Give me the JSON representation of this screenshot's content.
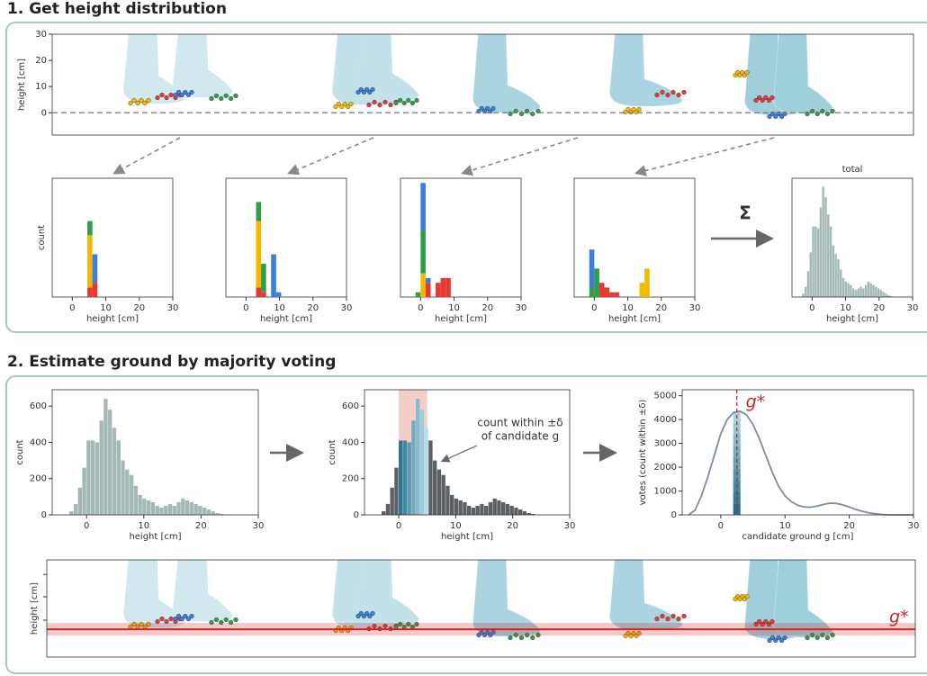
{
  "section1": {
    "title": "1. Get height distribution",
    "strip": {
      "ylabel": "height [cm]",
      "ylim": [
        -8.5,
        30
      ],
      "yticks": [
        0,
        10,
        20,
        30
      ],
      "ground_line": 0
    },
    "histograms": {
      "xlabel": "height [cm]",
      "ylabel": "count",
      "xlim": [
        -6,
        30
      ],
      "xticks": [
        0,
        10,
        20,
        30
      ],
      "ylim": [
        0,
        25
      ],
      "colors": [
        "#e53935",
        "#f5b800",
        "#2e9e48",
        "#3b7de0"
      ],
      "items": [
        {
          "bins": [
            4.5,
            6,
            7.5
          ],
          "series": [
            [
              2,
              3
            ],
            [
              11,
              0
            ],
            [
              3,
              0
            ],
            [
              0,
              6
            ]
          ]
        },
        {
          "bins": [
            3,
            4.5,
            6,
            7.5,
            9,
            10.5
          ],
          "series": [
            [
              2,
              1,
              0,
              0,
              0
            ],
            [
              14,
              0,
              0,
              0,
              0
            ],
            [
              4,
              6,
              0,
              0,
              0
            ],
            [
              0,
              0,
              0,
              9,
              1
            ]
          ]
        },
        {
          "bins": [
            -1.5,
            0,
            1.5,
            3,
            4.5,
            6,
            7.5,
            9
          ],
          "series": [
            [
              0,
              0,
              3,
              0,
              3,
              4,
              4
            ],
            [
              0,
              5,
              0,
              0,
              0,
              0,
              0
            ],
            [
              1,
              9,
              0,
              0,
              0,
              0,
              0
            ],
            [
              0,
              10,
              1,
              0,
              0,
              0,
              0
            ]
          ]
        },
        {
          "bins": [
            -1.5,
            0,
            1.5,
            3,
            4.5,
            6,
            7.5,
            9,
            10.5,
            12,
            13.5,
            15,
            16.5
          ],
          "series": [
            [
              0,
              0,
              3,
              2,
              1,
              1,
              0,
              0,
              0,
              0,
              0,
              0
            ],
            [
              0,
              0,
              0,
              0,
              0,
              0,
              0,
              0,
              0,
              0,
              3,
              6
            ],
            [
              2,
              6,
              0,
              0,
              0,
              0,
              0,
              0,
              0,
              0,
              0,
              0
            ],
            [
              8,
              0,
              0,
              0,
              0,
              0,
              0,
              0,
              0,
              0,
              0,
              0
            ]
          ]
        }
      ]
    },
    "sum_symbol": "Σ",
    "total": {
      "title": "total"
    }
  },
  "section2": {
    "title": "2. Estimate ground by majority voting",
    "distribution": {
      "bins": [
        -3,
        -2.25,
        -1.5,
        -0.75,
        0,
        0.75,
        1.5,
        2.25,
        3,
        3.75,
        4.5,
        5.25,
        6,
        6.75,
        7.5,
        8.25,
        9,
        9.75,
        10.5,
        11.25,
        12,
        12.75,
        13.5,
        14.25,
        15,
        15.75,
        16.5,
        17.25,
        18,
        18.75,
        19.5,
        20.25,
        21,
        21.75,
        22.5,
        23.25,
        24
      ],
      "values": [
        20,
        60,
        150,
        260,
        410,
        410,
        400,
        520,
        640,
        580,
        480,
        410,
        300,
        250,
        220,
        160,
        110,
        90,
        80,
        70,
        50,
        40,
        50,
        60,
        50,
        70,
        90,
        80,
        70,
        60,
        50,
        40,
        30,
        20,
        10,
        5
      ],
      "xlim": [
        -6,
        30
      ],
      "xticks": [
        0,
        10,
        20,
        30
      ],
      "ylim": [
        0,
        690
      ],
      "yticks": [
        0,
        200,
        400,
        600
      ],
      "xlabel": "height [cm]",
      "ylabel": "count",
      "color": "#a3b9b6"
    },
    "window_plot": {
      "xlabel": "height [cm]",
      "ylabel": "count",
      "outside_color": "#5b6065",
      "inside_colors": [
        "#1f6f8f",
        "#b7e1ec"
      ],
      "window_color": "#f3c2bb",
      "annotation": [
        "count within ±δ",
        "of candidate g"
      ]
    },
    "votes": {
      "x": [
        -5,
        -4,
        -3,
        -2,
        -1,
        0,
        1,
        2,
        3,
        4,
        5,
        6,
        7,
        8,
        9,
        10,
        11,
        12,
        13,
        14,
        15,
        16,
        17,
        18,
        19,
        20,
        21,
        22,
        23,
        24,
        25,
        26,
        27,
        28,
        29,
        30
      ],
      "values": [
        0,
        200,
        800,
        1600,
        2500,
        3400,
        4000,
        4300,
        4350,
        4200,
        3800,
        3200,
        2500,
        1800,
        1200,
        800,
        550,
        400,
        330,
        320,
        370,
        440,
        490,
        480,
        420,
        330,
        230,
        150,
        90,
        50,
        20,
        5,
        0,
        0,
        0,
        0
      ],
      "xlim": [
        -6,
        30
      ],
      "ylim": [
        0,
        5250
      ],
      "xticks": [
        0,
        10,
        20,
        30
      ],
      "yticks": [
        0,
        1000,
        2000,
        3000,
        4000,
        5000
      ],
      "xlabel": "candidate ground g [cm]",
      "ylabel": "votes (count within ±δ)",
      "color": "#7d8ca3",
      "g_star": 2.5,
      "g_star_votes": 4350,
      "g_label": "g*"
    },
    "delta": 2.5,
    "strip": {
      "ylabel": "height [cm]",
      "ylim": [
        -8.5,
        30
      ],
      "g_label": "g*",
      "color": "#c62828"
    }
  }
}
